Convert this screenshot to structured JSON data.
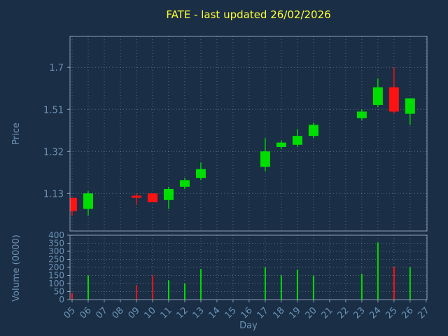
{
  "colors": {
    "background": "#1a2e45",
    "title": "#ffff33",
    "axis_text": "#6c92b4",
    "grid": "#b0c4d8",
    "frame": "#a9bccd",
    "up": "#00dd00",
    "down": "#ff1212"
  },
  "chart_data": {
    "type": "candlestick",
    "title": "FATE - last updated 26/02/2026",
    "xlabel": "Day",
    "legend": "none",
    "grid": "dotted",
    "price_axis": {
      "label": "Price",
      "ticks": [
        "1.13",
        "1.32",
        "1.51",
        "1.7"
      ],
      "min": 0.96,
      "max": 1.84
    },
    "volume_axis": {
      "label": "Volume (0000)",
      "ticks": [
        0,
        50,
        100,
        150,
        200,
        250,
        300,
        350,
        400
      ],
      "min": 0,
      "max": 400
    },
    "x_axis": {
      "ticks": [
        "05",
        "06",
        "07",
        "08",
        "09",
        "10",
        "11",
        "12",
        "13",
        "14",
        "15",
        "16",
        "17",
        "18",
        "19",
        "20",
        "21",
        "22",
        "23",
        "24",
        "25",
        "26",
        "27"
      ],
      "min": 4.87,
      "max": 27.05
    },
    "candles": [
      {
        "day": 5,
        "open": 1.11,
        "high": 1.11,
        "low": 1.03,
        "close": 1.05,
        "volume": 40
      },
      {
        "day": 6,
        "open": 1.06,
        "high": 1.14,
        "low": 1.03,
        "close": 1.13,
        "volume": 150
      },
      {
        "day": 9,
        "open": 1.12,
        "high": 1.13,
        "low": 1.08,
        "close": 1.11,
        "volume": 90
      },
      {
        "day": 10,
        "open": 1.13,
        "high": 1.13,
        "low": 1.09,
        "close": 1.09,
        "volume": 150
      },
      {
        "day": 11,
        "open": 1.1,
        "high": 1.16,
        "low": 1.06,
        "close": 1.15,
        "volume": 120
      },
      {
        "day": 12,
        "open": 1.16,
        "high": 1.2,
        "low": 1.15,
        "close": 1.19,
        "volume": 100
      },
      {
        "day": 13,
        "open": 1.2,
        "high": 1.27,
        "low": 1.19,
        "close": 1.24,
        "volume": 190
      },
      {
        "day": 17,
        "open": 1.25,
        "high": 1.38,
        "low": 1.23,
        "close": 1.32,
        "volume": 200
      },
      {
        "day": 18,
        "open": 1.34,
        "high": 1.37,
        "low": 1.33,
        "close": 1.36,
        "volume": 150
      },
      {
        "day": 19,
        "open": 1.35,
        "high": 1.42,
        "low": 1.34,
        "close": 1.39,
        "volume": 185
      },
      {
        "day": 20,
        "open": 1.39,
        "high": 1.45,
        "low": 1.38,
        "close": 1.44,
        "volume": 150
      },
      {
        "day": 23,
        "open": 1.47,
        "high": 1.51,
        "low": 1.46,
        "close": 1.5,
        "volume": 160
      },
      {
        "day": 24,
        "open": 1.53,
        "high": 1.65,
        "low": 1.52,
        "close": 1.61,
        "volume": 355
      },
      {
        "day": 25,
        "open": 1.61,
        "high": 1.7,
        "low": 1.49,
        "close": 1.5,
        "volume": 205
      },
      {
        "day": 26,
        "open": 1.49,
        "high": 1.56,
        "low": 1.44,
        "close": 1.56,
        "volume": 200
      }
    ]
  }
}
